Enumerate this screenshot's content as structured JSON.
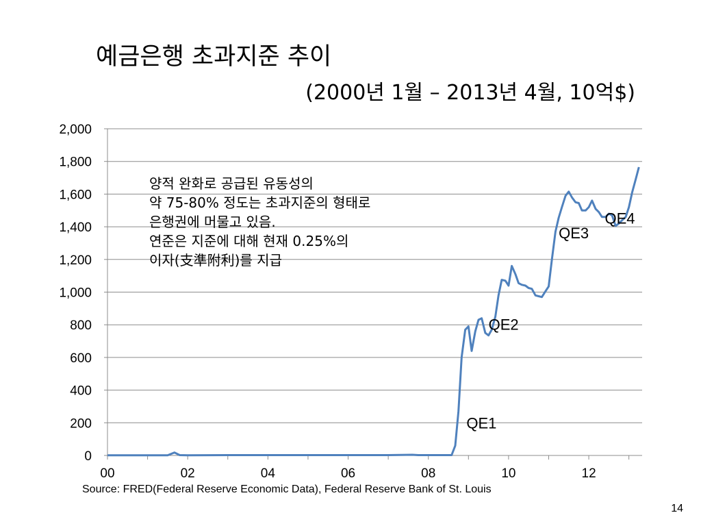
{
  "slide": {
    "title": "예금은행 초과지준 추이",
    "subtitle": "(2000년 1월 – 2013년 4월, 10억$)",
    "note_lines": [
      "양적 완화로 공급된 유동성의",
      "약 75-80% 정도는 초과지준의 형태로",
      "은행권에 머물고 있음.",
      "연준은 지준에 대해 현재 0.25%의",
      "이자(支準附利)를 지급"
    ],
    "source": "Source:  FRED(Federal Reserve Economic Data), Federal Reserve Bank of St. Louis",
    "page_number": "14"
  },
  "chart_data": {
    "type": "line",
    "title": "예금은행 초과지준 추이",
    "subtitle": "(2000년 1월 – 2013년 4월, 10억$)",
    "xlabel": "",
    "ylabel": "",
    "ylim": [
      0,
      2000
    ],
    "xlim": [
      2000,
      2013.33
    ],
    "y_ticks": [
      "0",
      "200",
      "400",
      "600",
      "800",
      "1,000",
      "1,200",
      "1,400",
      "1,600",
      "1,800",
      "2,000"
    ],
    "y_tick_values": [
      0,
      200,
      400,
      600,
      800,
      1000,
      1200,
      1400,
      1600,
      1800,
      2000
    ],
    "x_ticks": [
      "00",
      "02",
      "04",
      "06",
      "08",
      "10",
      "12"
    ],
    "x_tick_values": [
      2000,
      2002,
      2004,
      2006,
      2008,
      2010,
      2012
    ],
    "grid": true,
    "line_color": "#4F81BD",
    "series": [
      {
        "x": [
          2000.0,
          2001.5,
          2001.67,
          2001.8,
          2002.0,
          2003.0,
          2004.0,
          2005.0,
          2006.0,
          2007.0,
          2007.6,
          2007.75,
          2008.0,
          2008.58,
          2008.67,
          2008.75,
          2008.83,
          2008.92,
          2009.0,
          2009.08,
          2009.17,
          2009.25,
          2009.33,
          2009.42,
          2009.5,
          2009.58,
          2009.67,
          2009.75,
          2009.83,
          2009.92,
          2010.0,
          2010.08,
          2010.17,
          2010.25,
          2010.33,
          2010.42,
          2010.5,
          2010.58,
          2010.67,
          2010.75,
          2010.83,
          2010.92,
          2011.0,
          2011.08,
          2011.17,
          2011.25,
          2011.33,
          2011.42,
          2011.5,
          2011.58,
          2011.67,
          2011.75,
          2011.83,
          2011.92,
          2012.0,
          2012.08,
          2012.17,
          2012.25,
          2012.33,
          2012.42,
          2012.5,
          2012.58,
          2012.67,
          2012.75,
          2012.83,
          2012.92,
          2013.0,
          2013.08,
          2013.17,
          2013.25
        ],
        "y": [
          1,
          1,
          18,
          2,
          1,
          2,
          2,
          2,
          2,
          2,
          4,
          2,
          2,
          2,
          60,
          270,
          600,
          770,
          790,
          640,
          760,
          830,
          840,
          750,
          735,
          770,
          850,
          980,
          1075,
          1070,
          1040,
          1160,
          1110,
          1055,
          1045,
          1040,
          1025,
          1020,
          980,
          975,
          970,
          1005,
          1035,
          1200,
          1370,
          1455,
          1520,
          1590,
          1615,
          1580,
          1550,
          1545,
          1500,
          1500,
          1520,
          1560,
          1510,
          1490,
          1460,
          1460,
          1480,
          1470,
          1405,
          1420,
          1440,
          1460,
          1520,
          1610,
          1690,
          1765
        ]
      }
    ],
    "annotations": [
      {
        "text": "QE1",
        "x": 2008.95,
        "y": 165
      },
      {
        "text": "QE2",
        "x": 2009.5,
        "y": 770
      },
      {
        "text": "QE3",
        "x": 2011.25,
        "y": 1330
      },
      {
        "text": "QE4",
        "x": 2012.4,
        "y": 1420
      }
    ]
  }
}
